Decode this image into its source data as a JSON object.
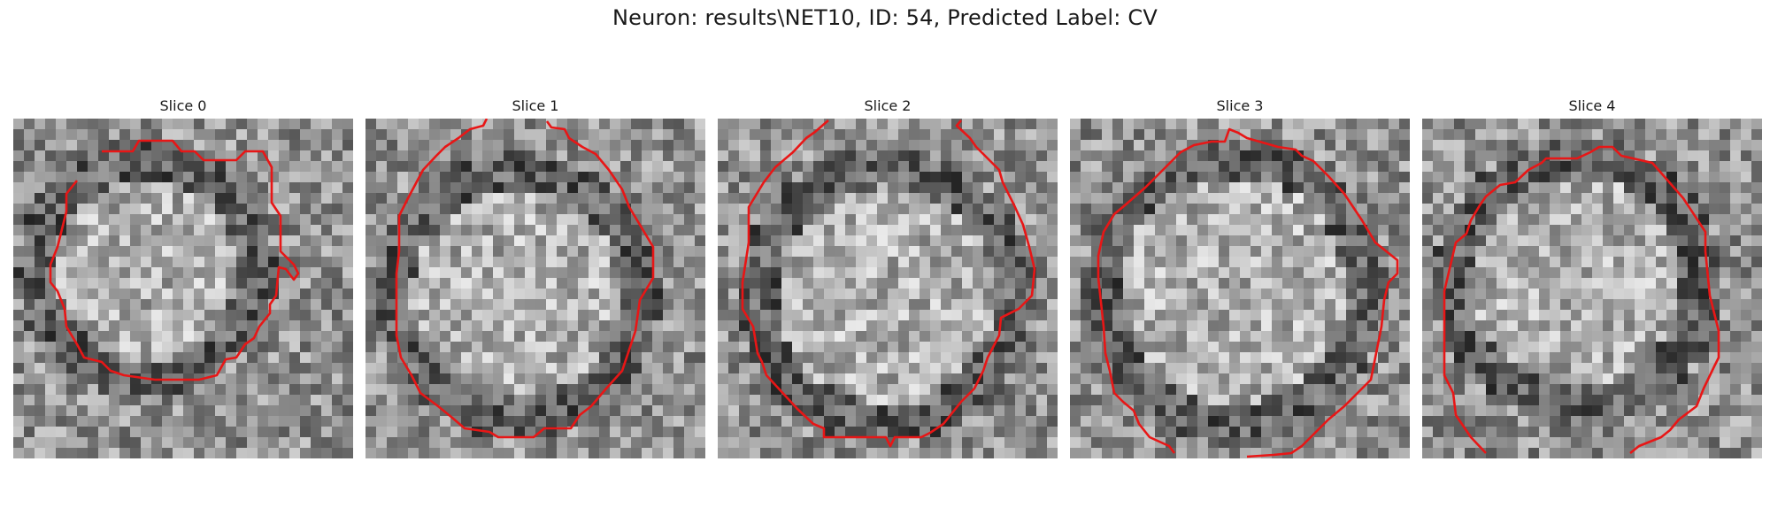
{
  "figure": {
    "title": "Neuron: results\\NET10, ID: 54, Predicted Label: CV"
  },
  "colors": {
    "contour": "#e81616",
    "background": "#ffffff"
  },
  "slices": [
    {
      "title": "Slice 0"
    },
    {
      "title": "Slice 1"
    },
    {
      "title": "Slice 2"
    },
    {
      "title": "Slice 3"
    },
    {
      "title": "Slice 4"
    }
  ]
}
